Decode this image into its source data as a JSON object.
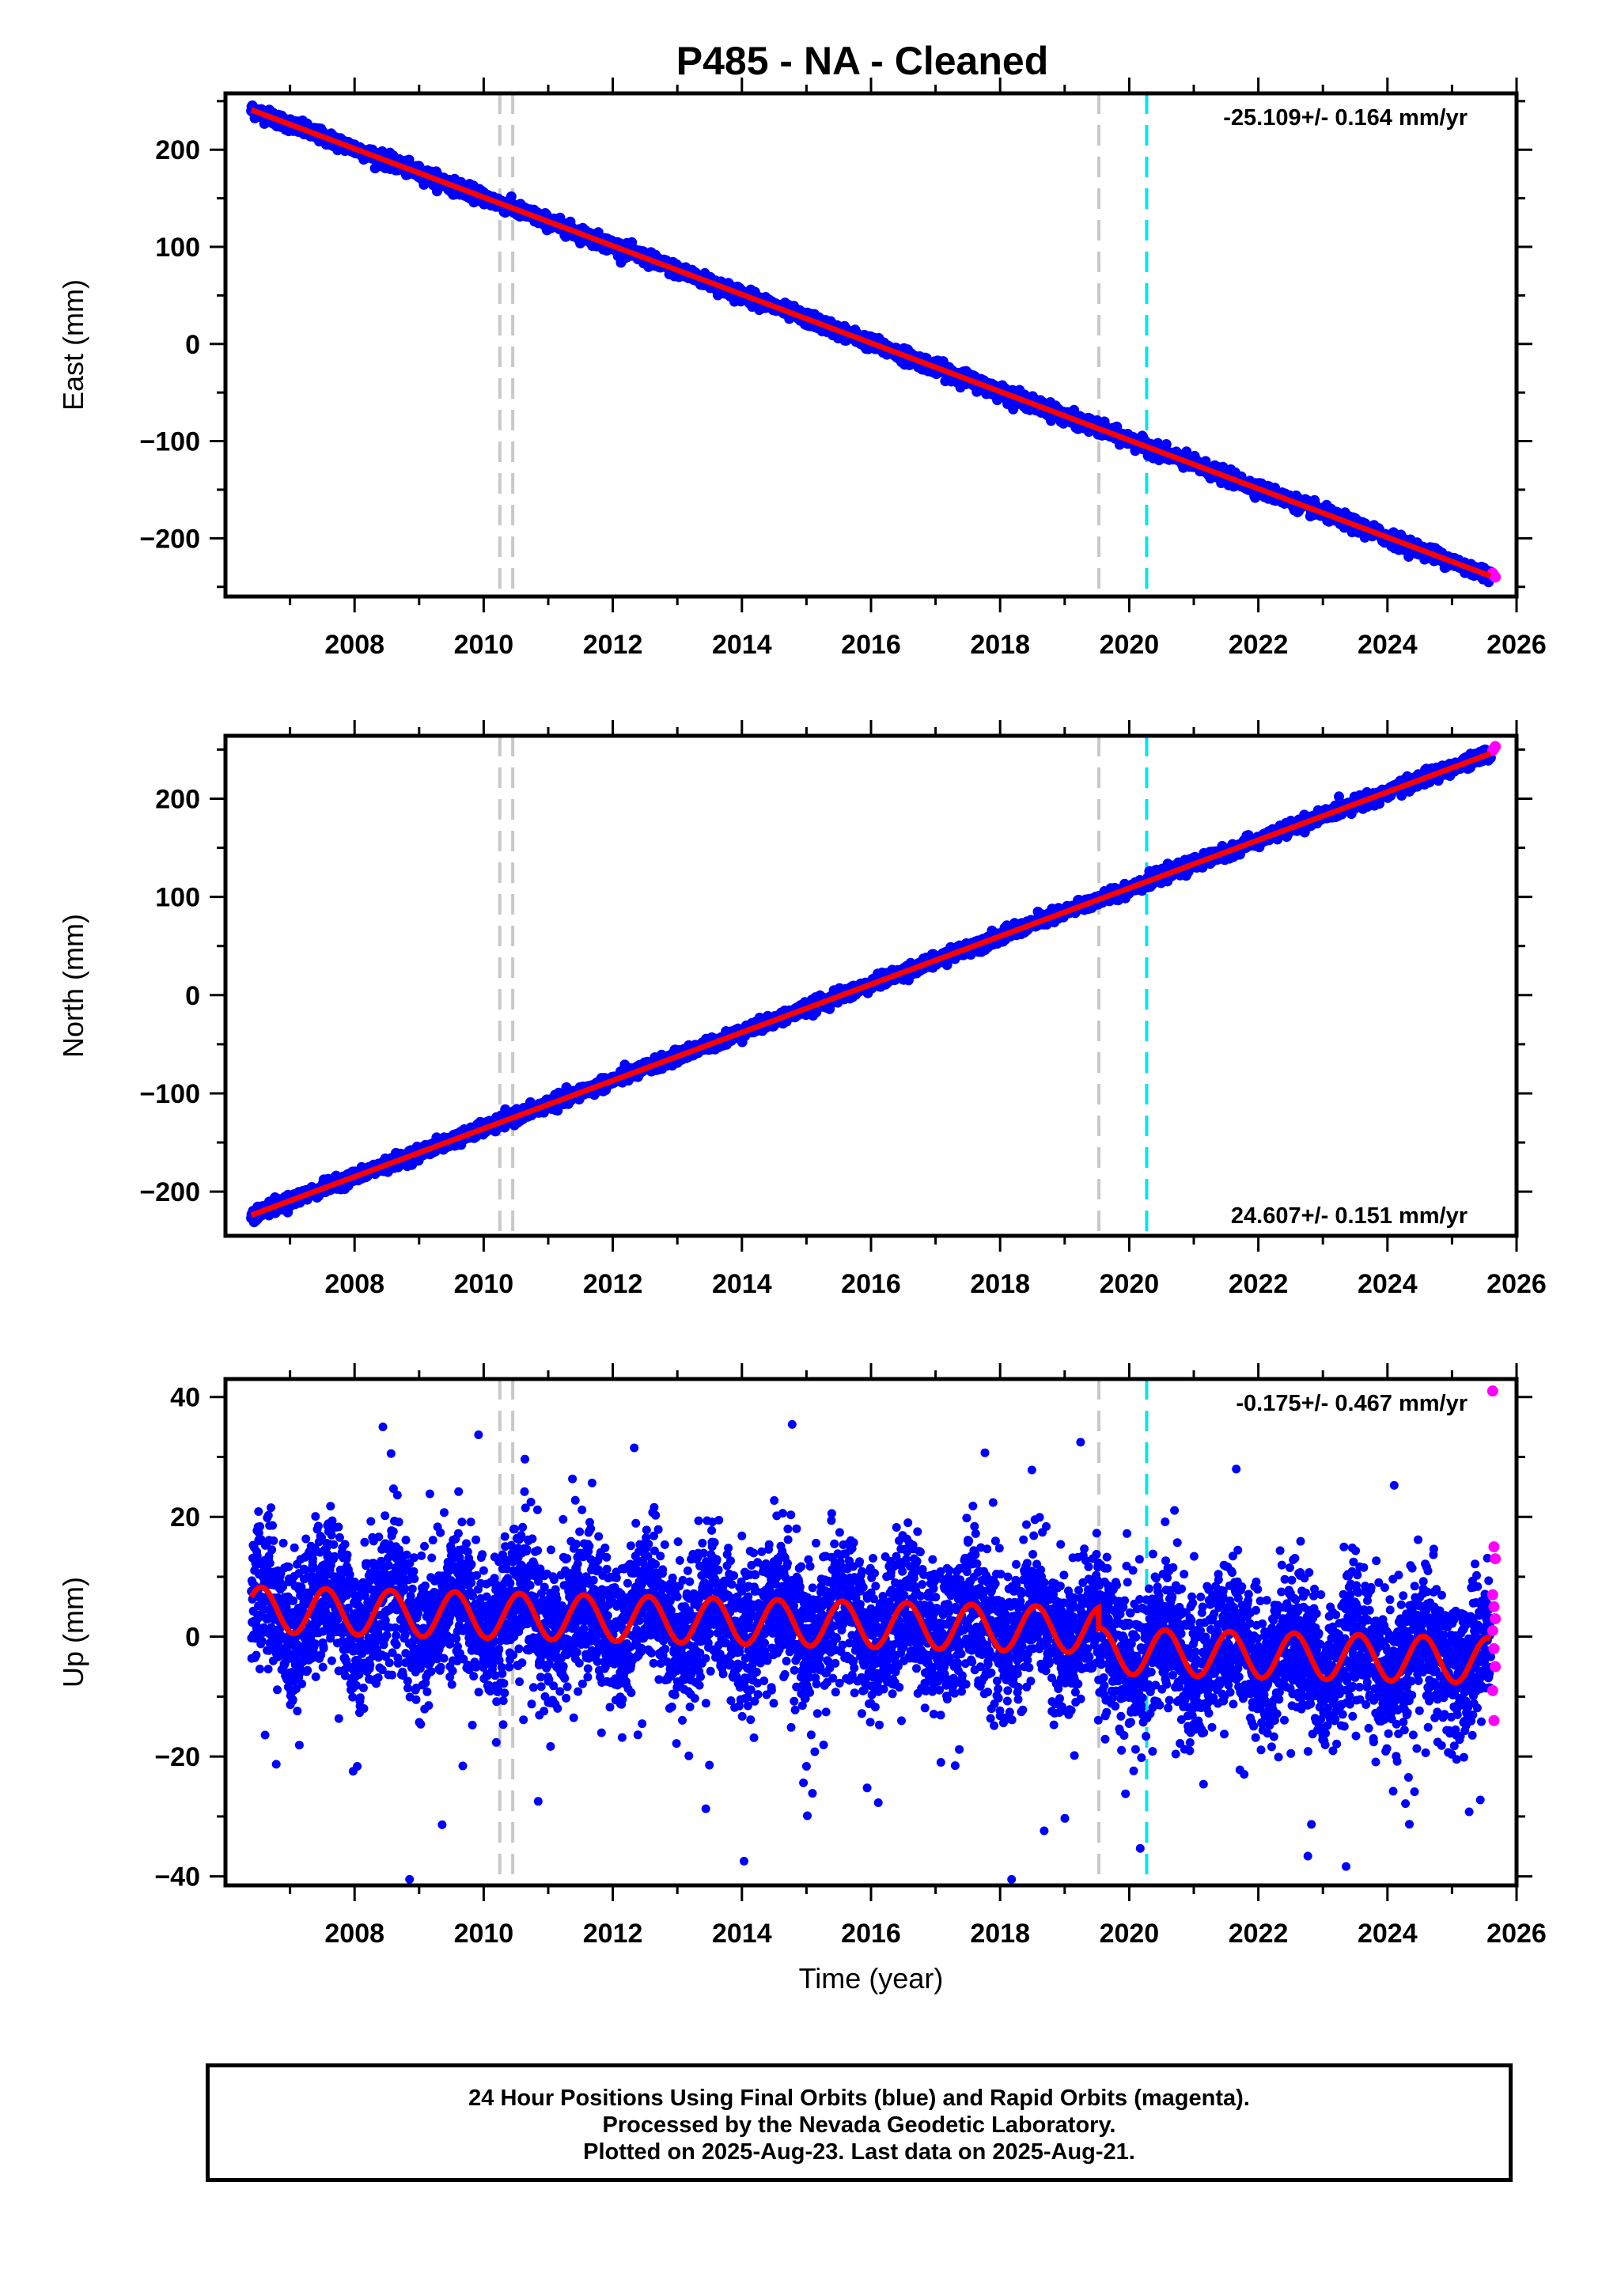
{
  "title": "P485  - NA - Cleaned",
  "footer": {
    "line1": "24 Hour Positions Using Final Orbits (blue) and Rapid Orbits (magenta).",
    "line2": "Processed by the Nevada Geodetic Laboratory.",
    "line3": "Plotted on 2025-Aug-23. Last data on 2025-Aug-21."
  },
  "colors": {
    "final_orbits": "#0000ff",
    "rapid_orbits": "#ff00ff",
    "model": "#ff0000",
    "offsets": "#c8c8c8",
    "equipment_change": "#00e5ee"
  },
  "chart_data": [
    {
      "type": "scatter",
      "name": "east",
      "ylabel": "East (mm)",
      "xlabel": "",
      "xlim": [
        2006.0,
        2026.0
      ],
      "ylim": [
        -260,
        258
      ],
      "xticks": [
        2008,
        2010,
        2012,
        2014,
        2016,
        2018,
        2020,
        2022,
        2024,
        2026
      ],
      "yticks": [
        -200,
        -100,
        0,
        100,
        200
      ],
      "rate_label": "-25.109+/- 0.164 mm/yr",
      "rate_position": "top-right",
      "offset_lines": [
        2010.25,
        2010.45,
        2019.53
      ],
      "equipment_lines": [
        2020.27
      ],
      "start_year": 2006.4,
      "end_year": 2025.6,
      "start_value": 241,
      "end_value": -239,
      "seasonal_amplitude": 0,
      "scatter_sd": 3.5,
      "rapid_values": [
        -236,
        -238,
        -240
      ]
    },
    {
      "type": "scatter",
      "name": "north",
      "ylabel": "North (mm)",
      "xlabel": "",
      "xlim": [
        2006.0,
        2026.0
      ],
      "ylim": [
        -245,
        264
      ],
      "xticks": [
        2008,
        2010,
        2012,
        2014,
        2016,
        2018,
        2020,
        2022,
        2024,
        2026
      ],
      "yticks": [
        -200,
        -100,
        0,
        100,
        200
      ],
      "rate_label": "24.607+/- 0.151 mm/yr",
      "rate_position": "bottom-right",
      "offset_lines": [
        2010.25,
        2010.45,
        2019.53
      ],
      "equipment_lines": [
        2020.27
      ],
      "start_year": 2006.4,
      "end_year": 2025.6,
      "start_value": -224,
      "end_value": 246,
      "seasonal_amplitude": 0,
      "scatter_sd": 3.2,
      "rapid_values": [
        249,
        251,
        253
      ]
    },
    {
      "type": "scatter",
      "name": "up",
      "ylabel": "Up (mm)",
      "xlabel": "Time (year)",
      "xlim": [
        2006.0,
        2026.0
      ],
      "ylim": [
        -41.5,
        43
      ],
      "xticks": [
        2008,
        2010,
        2012,
        2014,
        2016,
        2018,
        2020,
        2022,
        2024,
        2026
      ],
      "yticks": [
        -40,
        -20,
        0,
        20,
        40
      ],
      "rate_label": "-0.175+/- 0.467 mm/yr",
      "rate_position": "top-right",
      "offset_lines": [
        2010.25,
        2010.45,
        2019.53
      ],
      "equipment_lines": [
        2020.27
      ],
      "start_year": 2006.4,
      "end_year": 2025.6,
      "start_value": 1.5,
      "end_value": -3.5,
      "post_2020_shift": -5,
      "seasonal_amplitude": 3.8,
      "scatter_sd": 6,
      "rapid_values": [
        41,
        15,
        13,
        7,
        5,
        3,
        1,
        -2,
        -5,
        -9,
        -14
      ]
    }
  ]
}
